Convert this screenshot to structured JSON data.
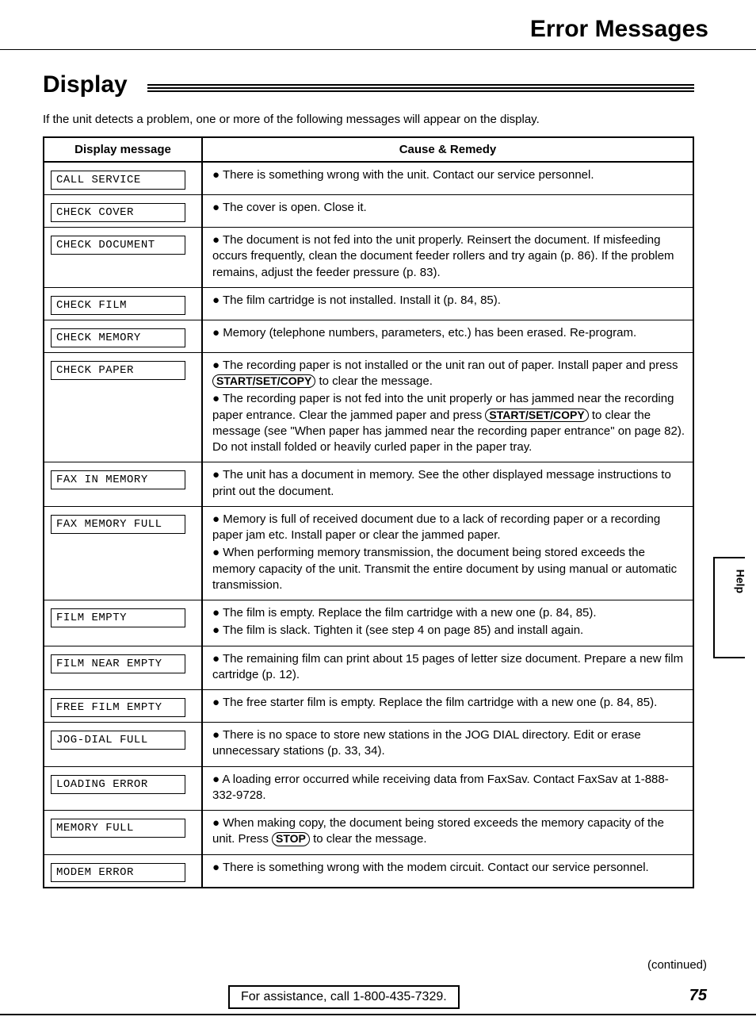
{
  "page": {
    "title": "Error Messages",
    "section_title": "Display",
    "intro": "If the unit detects a problem, one or more of the following messages will appear on the display.",
    "col_msg": "Display message",
    "col_rem": "Cause & Remedy",
    "continued": "(continued)",
    "assist": "For assistance, call 1-800-435-7329.",
    "page_number": "75",
    "side_tab": "Help"
  },
  "keys": {
    "start": "START/SET/COPY",
    "stop": "STOP"
  },
  "rows": [
    {
      "msg": "CALL SERVICE",
      "rem": [
        "● There is something wrong with the unit. Contact our service personnel."
      ]
    },
    {
      "msg": "CHECK COVER",
      "rem": [
        "● The cover is open. Close it."
      ]
    },
    {
      "msg": "CHECK DOCUMENT",
      "rem": [
        "● The document is not fed into the unit properly. Reinsert the document. If misfeeding occurs frequently, clean the document feeder rollers and try again (p. 86). If the problem remains, adjust the feeder pressure (p. 83)."
      ]
    },
    {
      "msg": "CHECK FILM",
      "rem": [
        "● The film cartridge is not installed. Install it (p. 84, 85)."
      ]
    },
    {
      "msg": "CHECK MEMORY",
      "rem": [
        "● Memory (telephone numbers, parameters, etc.) has been erased. Re-program."
      ]
    },
    {
      "msg": "CHECK PAPER",
      "rem_html": "checkpaper"
    },
    {
      "msg": "FAX IN MEMORY",
      "rem": [
        "● The unit has a document in memory. See the other displayed message instructions to print out the document."
      ]
    },
    {
      "msg": "FAX MEMORY FULL",
      "rem": [
        "● Memory is full of received document due to a lack of recording paper or a recording paper jam etc. Install paper or clear the jammed paper.",
        "● When performing memory transmission, the document being stored exceeds the memory capacity of the unit. Transmit the entire document by using manual or automatic transmission."
      ]
    },
    {
      "msg": "FILM EMPTY",
      "rem": [
        "● The film is empty. Replace the film cartridge with a new one (p. 84, 85).",
        "● The film is slack. Tighten it (see step 4 on page 85) and install again."
      ]
    },
    {
      "msg": "FILM NEAR EMPTY",
      "rem": [
        "● The remaining film can print about 15 pages of letter size document. Prepare a new film cartridge (p. 12)."
      ]
    },
    {
      "msg": "FREE FILM EMPTY",
      "rem": [
        "● The free starter film is empty. Replace the film cartridge with a new one (p. 84, 85)."
      ]
    },
    {
      "msg": "JOG-DIAL FULL",
      "rem": [
        "● There is no space to store new stations in the JOG DIAL directory. Edit or erase unnecessary stations (p. 33, 34)."
      ]
    },
    {
      "msg": "LOADING ERROR",
      "rem": [
        "● A loading error occurred while receiving data from FaxSav. Contact FaxSav at 1-888-332-9728."
      ]
    },
    {
      "msg": "MEMORY FULL",
      "rem_html": "memoryfull"
    },
    {
      "msg": "MODEM ERROR",
      "rem": [
        "● There is something wrong with the modem circuit. Contact our service personnel."
      ]
    }
  ]
}
